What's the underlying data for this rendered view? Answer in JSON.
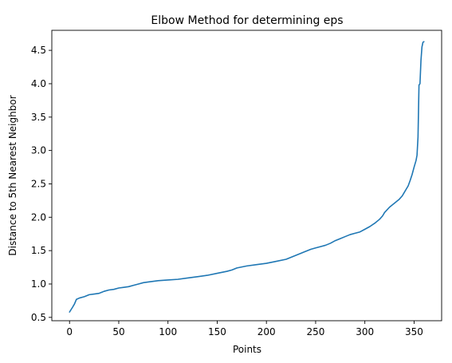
{
  "chart_data": {
    "type": "line",
    "title": "Elbow Method for determining eps",
    "xlabel": "Points",
    "ylabel": "Distance to 5th Nearest Neighbor",
    "xlim": [
      -18,
      378
    ],
    "ylim": [
      0.45,
      4.8
    ],
    "xticks": [
      0,
      50,
      100,
      150,
      200,
      250,
      300,
      350
    ],
    "xtick_labels": [
      "0",
      "50",
      "100",
      "150",
      "200",
      "250",
      "300",
      "350"
    ],
    "yticks": [
      0.5,
      1.0,
      1.5,
      2.0,
      2.5,
      3.0,
      3.5,
      4.0,
      4.5
    ],
    "ytick_labels": [
      "0.5",
      "1.0",
      "1.5",
      "2.0",
      "2.5",
      "3.0",
      "3.5",
      "4.0",
      "4.5"
    ],
    "grid": false,
    "legend": "none",
    "series": [
      {
        "color": "#1f77b4",
        "x": [
          0,
          3,
          5,
          7,
          10,
          15,
          20,
          25,
          30,
          35,
          40,
          45,
          50,
          55,
          60,
          65,
          70,
          75,
          80,
          90,
          100,
          110,
          120,
          130,
          140,
          150,
          160,
          165,
          170,
          180,
          190,
          200,
          210,
          220,
          225,
          230,
          235,
          240,
          245,
          250,
          255,
          260,
          265,
          270,
          275,
          280,
          285,
          290,
          295,
          300,
          305,
          310,
          315,
          318,
          320,
          325,
          330,
          335,
          338,
          340,
          342,
          344,
          346,
          348,
          350,
          352,
          353,
          354,
          355,
          356,
          357,
          358,
          359,
          360
        ],
        "y": [
          0.58,
          0.65,
          0.7,
          0.77,
          0.79,
          0.81,
          0.84,
          0.85,
          0.86,
          0.89,
          0.91,
          0.92,
          0.94,
          0.95,
          0.96,
          0.98,
          1.0,
          1.02,
          1.03,
          1.05,
          1.06,
          1.07,
          1.09,
          1.11,
          1.13,
          1.16,
          1.19,
          1.21,
          1.24,
          1.27,
          1.29,
          1.31,
          1.34,
          1.37,
          1.4,
          1.43,
          1.46,
          1.49,
          1.52,
          1.54,
          1.56,
          1.58,
          1.61,
          1.65,
          1.68,
          1.71,
          1.74,
          1.76,
          1.78,
          1.82,
          1.86,
          1.91,
          1.97,
          2.02,
          2.07,
          2.15,
          2.21,
          2.27,
          2.32,
          2.37,
          2.42,
          2.47,
          2.55,
          2.64,
          2.75,
          2.85,
          2.93,
          3.2,
          3.98,
          4.0,
          4.35,
          4.55,
          4.62,
          4.63
        ]
      }
    ]
  }
}
